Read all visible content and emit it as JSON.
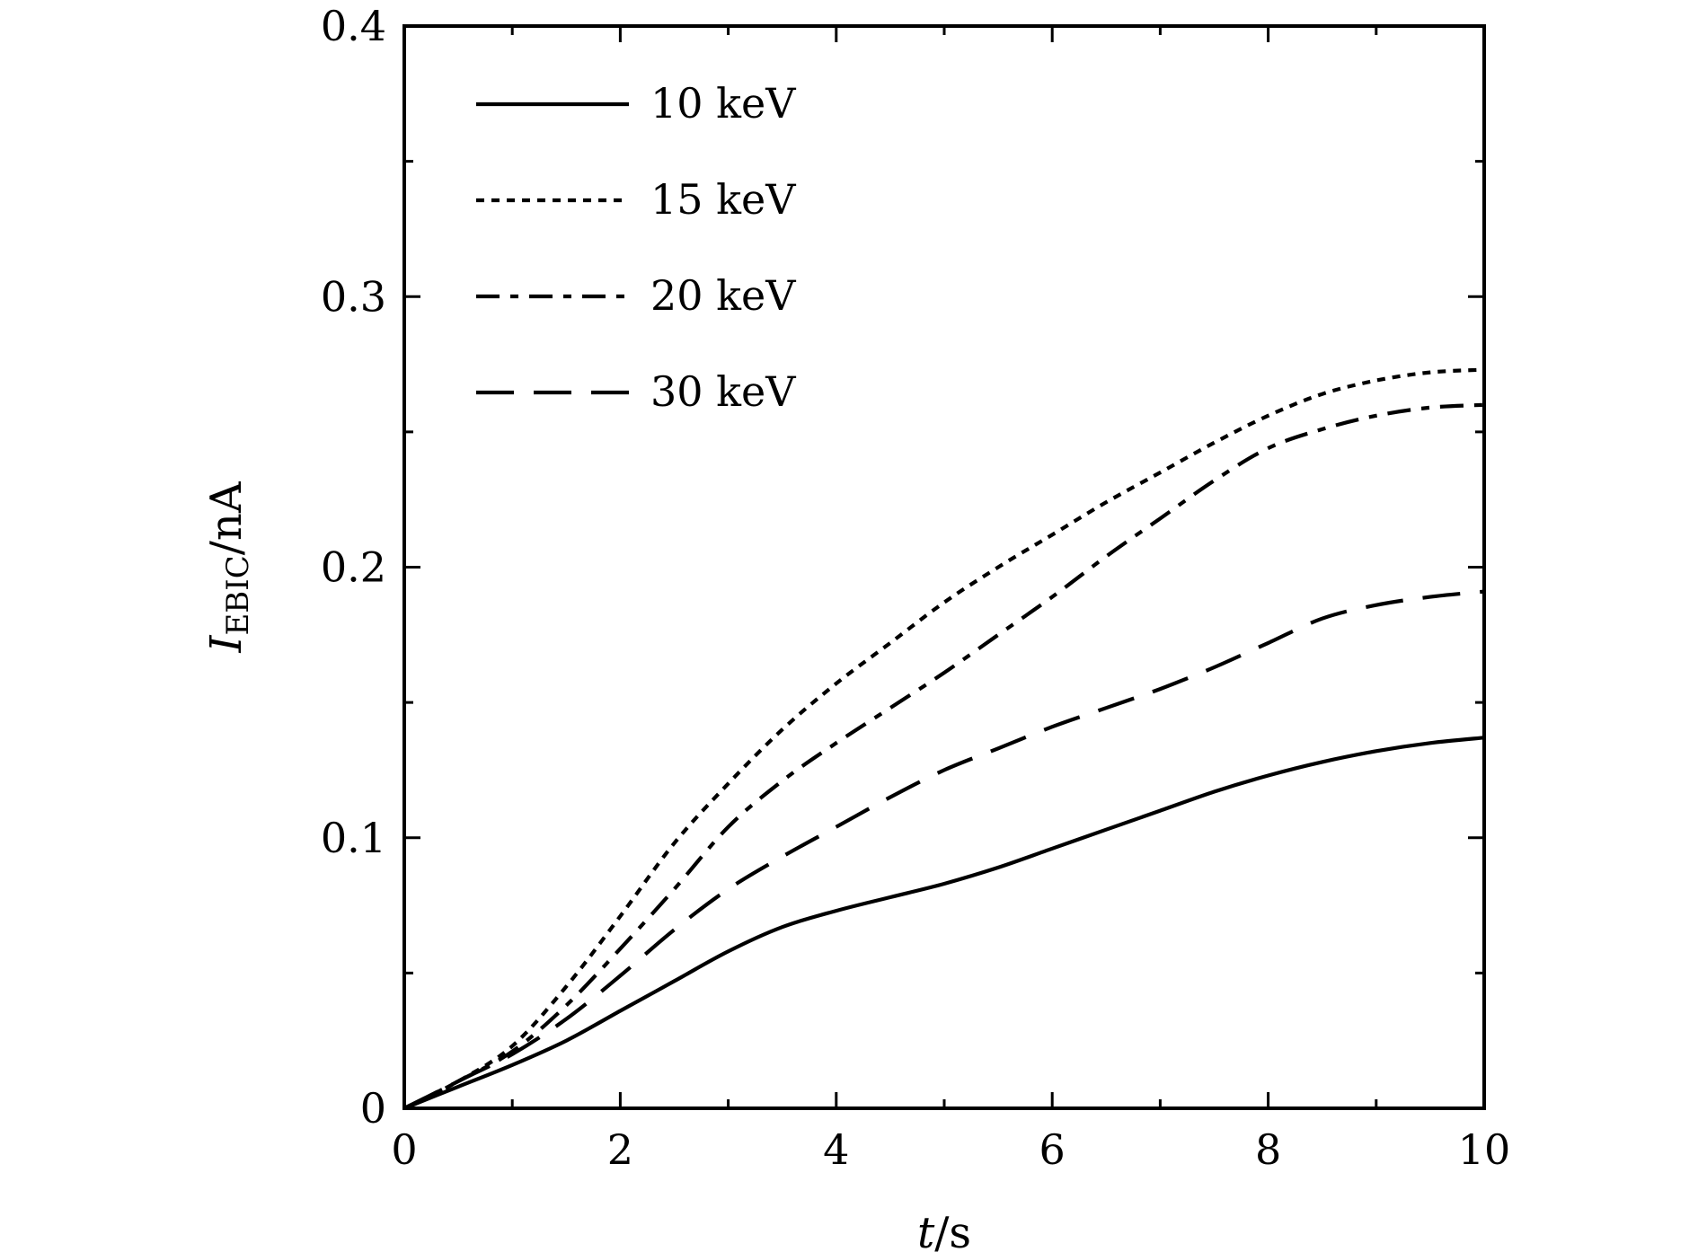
{
  "chart_data": {
    "type": "line",
    "xlabel": {
      "var": "t",
      "unit": "s"
    },
    "ylabel": {
      "var": "I",
      "sub": "EBIC",
      "unit": "nA"
    },
    "xlim": [
      0,
      10
    ],
    "ylim": [
      0,
      0.4
    ],
    "xticks": [
      0,
      2,
      4,
      6,
      8,
      10
    ],
    "xtick_labels": [
      "0",
      "2",
      "4",
      "6",
      "8",
      "10"
    ],
    "yticks": [
      0,
      0.1,
      0.2,
      0.3,
      0.4
    ],
    "ytick_labels": [
      "0",
      "0.1",
      "0.2",
      "0.3",
      "0.4"
    ],
    "legend_position": "top-left",
    "grid": false,
    "series": [
      {
        "name": "10 keV",
        "style": "solid",
        "x": [
          0,
          0.5,
          1,
          1.5,
          2,
          2.5,
          3,
          3.5,
          4,
          4.5,
          5,
          5.5,
          6,
          6.5,
          7,
          7.5,
          8,
          8.5,
          9,
          9.5,
          10
        ],
        "y": [
          0,
          0.008,
          0.016,
          0.025,
          0.036,
          0.047,
          0.058,
          0.067,
          0.073,
          0.078,
          0.083,
          0.089,
          0.096,
          0.103,
          0.11,
          0.117,
          0.123,
          0.128,
          0.132,
          0.135,
          0.137
        ]
      },
      {
        "name": "15 keV",
        "style": "dotted",
        "x": [
          0,
          0.5,
          1,
          1.5,
          2,
          2.5,
          3,
          3.5,
          4,
          4.5,
          5,
          5.5,
          6,
          6.5,
          7,
          7.5,
          8,
          8.5,
          9,
          9.5,
          10
        ],
        "y": [
          0,
          0.01,
          0.023,
          0.045,
          0.071,
          0.098,
          0.12,
          0.14,
          0.157,
          0.172,
          0.187,
          0.2,
          0.212,
          0.224,
          0.235,
          0.246,
          0.256,
          0.264,
          0.269,
          0.272,
          0.273
        ]
      },
      {
        "name": "20 keV",
        "style": "dashed",
        "x": [
          0,
          0.5,
          1,
          1.5,
          2,
          2.5,
          3,
          3.5,
          4,
          4.5,
          5,
          5.5,
          6,
          6.5,
          7,
          7.5,
          8,
          8.5,
          9,
          9.5,
          10
        ],
        "y": [
          0,
          0.01,
          0.021,
          0.038,
          0.059,
          0.081,
          0.104,
          0.121,
          0.135,
          0.148,
          0.161,
          0.175,
          0.189,
          0.204,
          0.218,
          0.232,
          0.244,
          0.251,
          0.256,
          0.259,
          0.26
        ]
      },
      {
        "name": "30 keV",
        "style": "long-dash",
        "x": [
          0,
          0.5,
          1,
          1.5,
          2,
          2.5,
          3,
          3.5,
          4,
          4.5,
          5,
          5.5,
          6,
          6.5,
          7,
          7.5,
          8,
          8.5,
          9,
          9.5,
          10
        ],
        "y": [
          0,
          0.01,
          0.02,
          0.033,
          0.049,
          0.066,
          0.081,
          0.093,
          0.104,
          0.115,
          0.125,
          0.133,
          0.141,
          0.148,
          0.155,
          0.163,
          0.172,
          0.181,
          0.186,
          0.189,
          0.191
        ]
      }
    ]
  }
}
